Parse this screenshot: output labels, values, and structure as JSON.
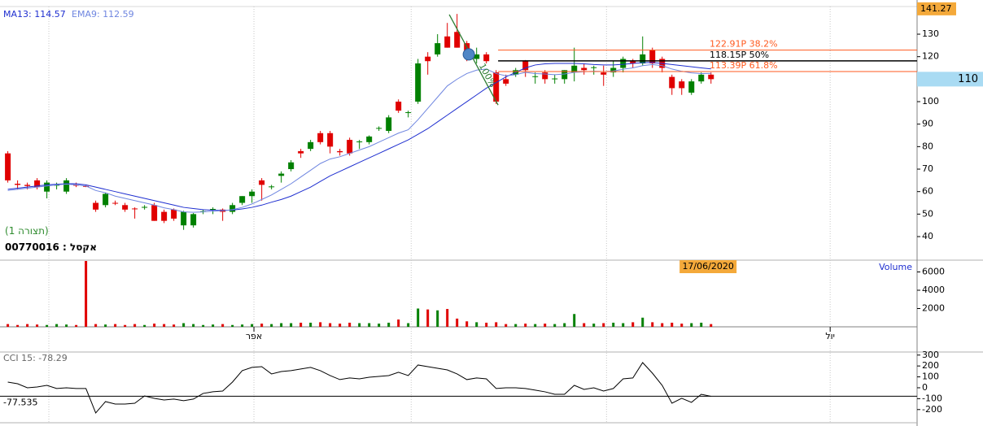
{
  "chart_data": {
    "type": "candlestick",
    "up_color": "#008000",
    "down_color": "#e00000",
    "xlim": [
      -0.8,
      93.1
    ],
    "ylim": [
      30.25,
      142.3
    ],
    "yticks": [
      40,
      50,
      60,
      70,
      80,
      90,
      100,
      110,
      120,
      130
    ],
    "xticks": [
      {
        "value": 4.2,
        "label": null
      },
      {
        "value": 25.2,
        "label": "אפר"
      },
      {
        "value": 41.3,
        "label": null
      },
      {
        "value": 61.3,
        "label": null
      },
      {
        "value": 84.2,
        "label": "יול"
      }
    ],
    "panel_label": "(תצורה 1)",
    "symbol_label": "אקסל : 00770016",
    "cursor_price": {
      "value": 141.27,
      "label": "141.27"
    },
    "last_price": {
      "value": 110,
      "label": "110"
    },
    "ohlc": [
      [
        77,
        78,
        64,
        65
      ],
      [
        63.5,
        65,
        61,
        63
      ],
      [
        63,
        64,
        61,
        62.5
      ],
      [
        65,
        66,
        61,
        62
      ],
      [
        60,
        65,
        57,
        64
      ],
      [
        63,
        64,
        61,
        63
      ],
      [
        60,
        66,
        59,
        65
      ],
      [
        63,
        64,
        62,
        62.8
      ],
      [
        62.5,
        63,
        62,
        62.3
      ],
      [
        55,
        56,
        51,
        52
      ],
      [
        54,
        59.5,
        53,
        59
      ],
      [
        55,
        56,
        54,
        54.8
      ],
      [
        54,
        55,
        51,
        52
      ],
      [
        52.5,
        53,
        48,
        52.3
      ],
      [
        53,
        54,
        52,
        53.2
      ],
      [
        54,
        55,
        47,
        47
      ],
      [
        51,
        52,
        46,
        47
      ],
      [
        52,
        52.5,
        47,
        48
      ],
      [
        45,
        51.5,
        43,
        51
      ],
      [
        45,
        50.5,
        44,
        50
      ],
      [
        51,
        52,
        50,
        51.3
      ],
      [
        52,
        53,
        50,
        52.3
      ],
      [
        52,
        52.5,
        47,
        51
      ],
      [
        51,
        55,
        50,
        54
      ],
      [
        55,
        58,
        54,
        58
      ],
      [
        58,
        61,
        55,
        60
      ],
      [
        65,
        66,
        56,
        63
      ],
      [
        62,
        63,
        61,
        62.3
      ],
      [
        67,
        69,
        64,
        68
      ],
      [
        70,
        74,
        69,
        73
      ],
      [
        78,
        79,
        75,
        77
      ],
      [
        79,
        83,
        78,
        82
      ],
      [
        86,
        87,
        81,
        82
      ],
      [
        86,
        87,
        77,
        80
      ],
      [
        78,
        79,
        76,
        77.5
      ],
      [
        83,
        84,
        76,
        77
      ],
      [
        82,
        83,
        79,
        82.3
      ],
      [
        82,
        85,
        81,
        84.5
      ],
      [
        88,
        89,
        87,
        88.3
      ],
      [
        87,
        94,
        86,
        93
      ],
      [
        100,
        101,
        95,
        96
      ],
      [
        95,
        96,
        93,
        95.3
      ],
      [
        100,
        119,
        99,
        117
      ],
      [
        120,
        122,
        112,
        118
      ],
      [
        121,
        130,
        120,
        126
      ],
      [
        129,
        135,
        124,
        124
      ],
      [
        131,
        139,
        124,
        124
      ],
      [
        126,
        127,
        118,
        120
      ],
      [
        119,
        124,
        117,
        121
      ],
      [
        121,
        122,
        117,
        118
      ],
      [
        113,
        114,
        99,
        100
      ],
      [
        110,
        112,
        107,
        108
      ],
      [
        112,
        115,
        111,
        114
      ],
      [
        118,
        118.5,
        111,
        114
      ],
      [
        111,
        113,
        108,
        111.3
      ],
      [
        113,
        114,
        108,
        110
      ],
      [
        110,
        112,
        108,
        110.3
      ],
      [
        110,
        114,
        108,
        114
      ],
      [
        113,
        124,
        109,
        116
      ],
      [
        115,
        117,
        112,
        114
      ],
      [
        115,
        116,
        112,
        115.3
      ],
      [
        113,
        116,
        107,
        112
      ],
      [
        113,
        118,
        111,
        115
      ],
      [
        115,
        120,
        113,
        119
      ],
      [
        118,
        119,
        115,
        117
      ],
      [
        117,
        129,
        116,
        121
      ],
      [
        123,
        124,
        115,
        117
      ],
      [
        119,
        120,
        113,
        115
      ],
      [
        111,
        112,
        103,
        106
      ],
      [
        109,
        110,
        103,
        106
      ],
      [
        104,
        110,
        103,
        109
      ],
      [
        109,
        113,
        108,
        112
      ],
      [
        112,
        113,
        108,
        110
      ]
    ],
    "series": [
      {
        "name": "MA13: 114.57",
        "color": "#1f2fd0",
        "values": [
          61,
          61.5,
          62,
          62.5,
          63,
          63.3,
          63.5,
          63.5,
          63,
          62,
          61,
          60,
          59,
          58,
          57,
          56,
          55,
          54,
          53,
          52.5,
          52,
          51.7,
          51.6,
          51.8,
          52.3,
          53,
          54,
          55.3,
          56.5,
          58,
          60,
          62,
          64.5,
          67,
          69,
          71,
          73,
          75,
          77,
          79,
          81,
          83,
          85.5,
          88,
          91,
          94,
          97,
          100,
          103,
          106,
          108.5,
          111,
          113,
          115,
          116.3,
          116.8,
          117,
          117,
          117,
          116.8,
          116.5,
          116.3,
          116.3,
          116.6,
          117,
          117.3,
          117.4,
          117,
          116.5,
          116,
          115.5,
          115,
          114.57
        ]
      },
      {
        "name": "EMA9: 112.59",
        "color": "#6f86e0",
        "values": [
          60.5,
          61,
          61.5,
          62,
          62.5,
          63,
          63.3,
          63,
          62.5,
          60.5,
          59.5,
          58,
          57,
          56,
          55,
          54,
          52.8,
          52,
          51,
          50.8,
          51,
          51.3,
          51.5,
          52,
          53,
          54.5,
          56.5,
          58.5,
          61,
          63.5,
          66.5,
          69.5,
          72.5,
          74.5,
          75.5,
          77,
          78.5,
          80,
          82,
          84,
          86,
          87.5,
          92,
          97,
          102,
          107,
          110,
          112.5,
          114,
          114.5,
          112.5,
          111.5,
          112,
          113,
          112.5,
          112.3,
          112,
          112.3,
          113,
          113.3,
          113.5,
          113.4,
          113.6,
          114.4,
          115,
          116,
          116.5,
          116,
          114.5,
          113.5,
          112.8,
          112.5,
          112.59
        ]
      }
    ],
    "fib": {
      "start_index": 50.2,
      "levels": [
        {
          "value": 122.91,
          "label": "122.91P  38.2%",
          "color": "#ff5a1f"
        },
        {
          "value": 118.15,
          "label": "118.15P  50%",
          "color": "#000000"
        },
        {
          "value": 113.39,
          "label": "113.39P  61.8%",
          "color": "#ff5a1f"
        }
      ],
      "trend": {
        "start_index": 45.2,
        "start_value": 138.7,
        "end_index": 50.2,
        "end_value": 98.5,
        "label": "100%",
        "color": "#2e7d32"
      },
      "handle": {
        "x": 47.2,
        "y": 121
      }
    },
    "volume": {
      "title": "Volume",
      "ylim": [
        0,
        7290
      ],
      "yticks": [
        2000,
        4000,
        6000
      ],
      "date_label": "17/06/2020",
      "date_index": 71.7,
      "values": [
        300,
        200,
        300,
        250,
        200,
        300,
        250,
        200,
        7200,
        300,
        250,
        300,
        200,
        300,
        200,
        350,
        300,
        250,
        400,
        300,
        200,
        250,
        300,
        200,
        250,
        300,
        350,
        300,
        400,
        400,
        450,
        450,
        500,
        400,
        350,
        450,
        400,
        400,
        350,
        450,
        800,
        400,
        2000,
        1900,
        1800,
        1950,
        900,
        600,
        500,
        450,
        500,
        300,
        300,
        350,
        300,
        350,
        300,
        400,
        1400,
        400,
        350,
        400,
        450,
        400,
        500,
        1000,
        500,
        400,
        450,
        350,
        400,
        450,
        300
      ]
    },
    "cci": {
      "title": "CCI 15: -78.29",
      "color": "#000000",
      "ylim": [
        -321,
        328
      ],
      "yticks": [
        300,
        200,
        100,
        0,
        -100,
        -200
      ],
      "cursor": {
        "value": -77.535,
        "label": "-77.535"
      },
      "values": [
        52,
        37,
        0,
        7,
        22,
        -7,
        0,
        -7,
        -7,
        -231,
        -127,
        -149,
        -149,
        -142,
        -75,
        -97,
        -112,
        -104,
        -119,
        -104,
        -52,
        -37,
        -30,
        52,
        157,
        187,
        194,
        127,
        149,
        157,
        172,
        187,
        157,
        112,
        75,
        90,
        82,
        97,
        104,
        112,
        142,
        112,
        209,
        194,
        179,
        164,
        127,
        75,
        90,
        82,
        -7,
        0,
        0,
        -7,
        -22,
        -37,
        -60,
        -60,
        22,
        -15,
        0,
        -30,
        -7,
        82,
        90,
        231,
        134,
        22,
        -142,
        -97,
        -134,
        -60,
        -78.29
      ]
    }
  }
}
